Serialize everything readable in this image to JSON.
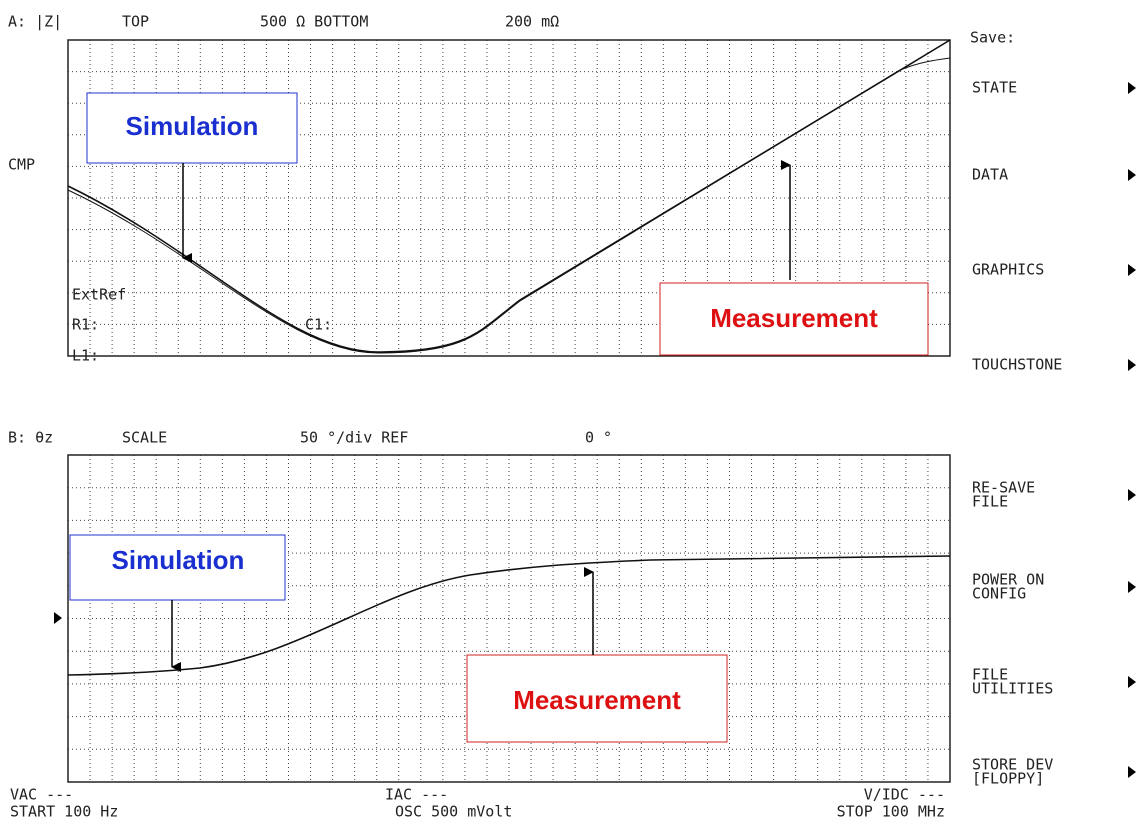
{
  "panel_a": {
    "header": {
      "channel": "A: |Z|",
      "top_label": "TOP",
      "top_value": "500 Ω BOTTOM",
      "bottom_value": "200 mΩ"
    },
    "side_label": "CMP",
    "overlay": {
      "extref": "ExtRef",
      "r1": "R1:",
      "c1": "C1:",
      "l1": "L1:"
    },
    "annotations": {
      "simulation": "Simulation",
      "measurement": "Measurement"
    }
  },
  "panel_b": {
    "header": {
      "channel": "B: θz",
      "scale_label": "SCALE",
      "scale_value": "50 °/div REF",
      "ref_value": "0 °"
    },
    "annotations": {
      "simulation": "Simulation",
      "measurement": "Measurement"
    }
  },
  "softkeys": {
    "title": "Save:",
    "keys": [
      [
        "STATE"
      ],
      [
        "DATA"
      ],
      [
        "GRAPHICS"
      ],
      [
        "TOUCHSTONE"
      ],
      [
        "RE-SAVE",
        "FILE"
      ],
      [
        "POWER ON",
        "CONFIG"
      ],
      [
        "FILE",
        "UTILITIES"
      ],
      [
        "STORE DEV",
        "[FLOPPY]"
      ]
    ]
  },
  "footer": {
    "vac": "VAC ---",
    "start": "START 100 Hz",
    "iac": "IAC ---",
    "osc": "OSC 500 mVolt",
    "vidc": "V/IDC ---",
    "stop": "STOP 100 MHz"
  }
}
